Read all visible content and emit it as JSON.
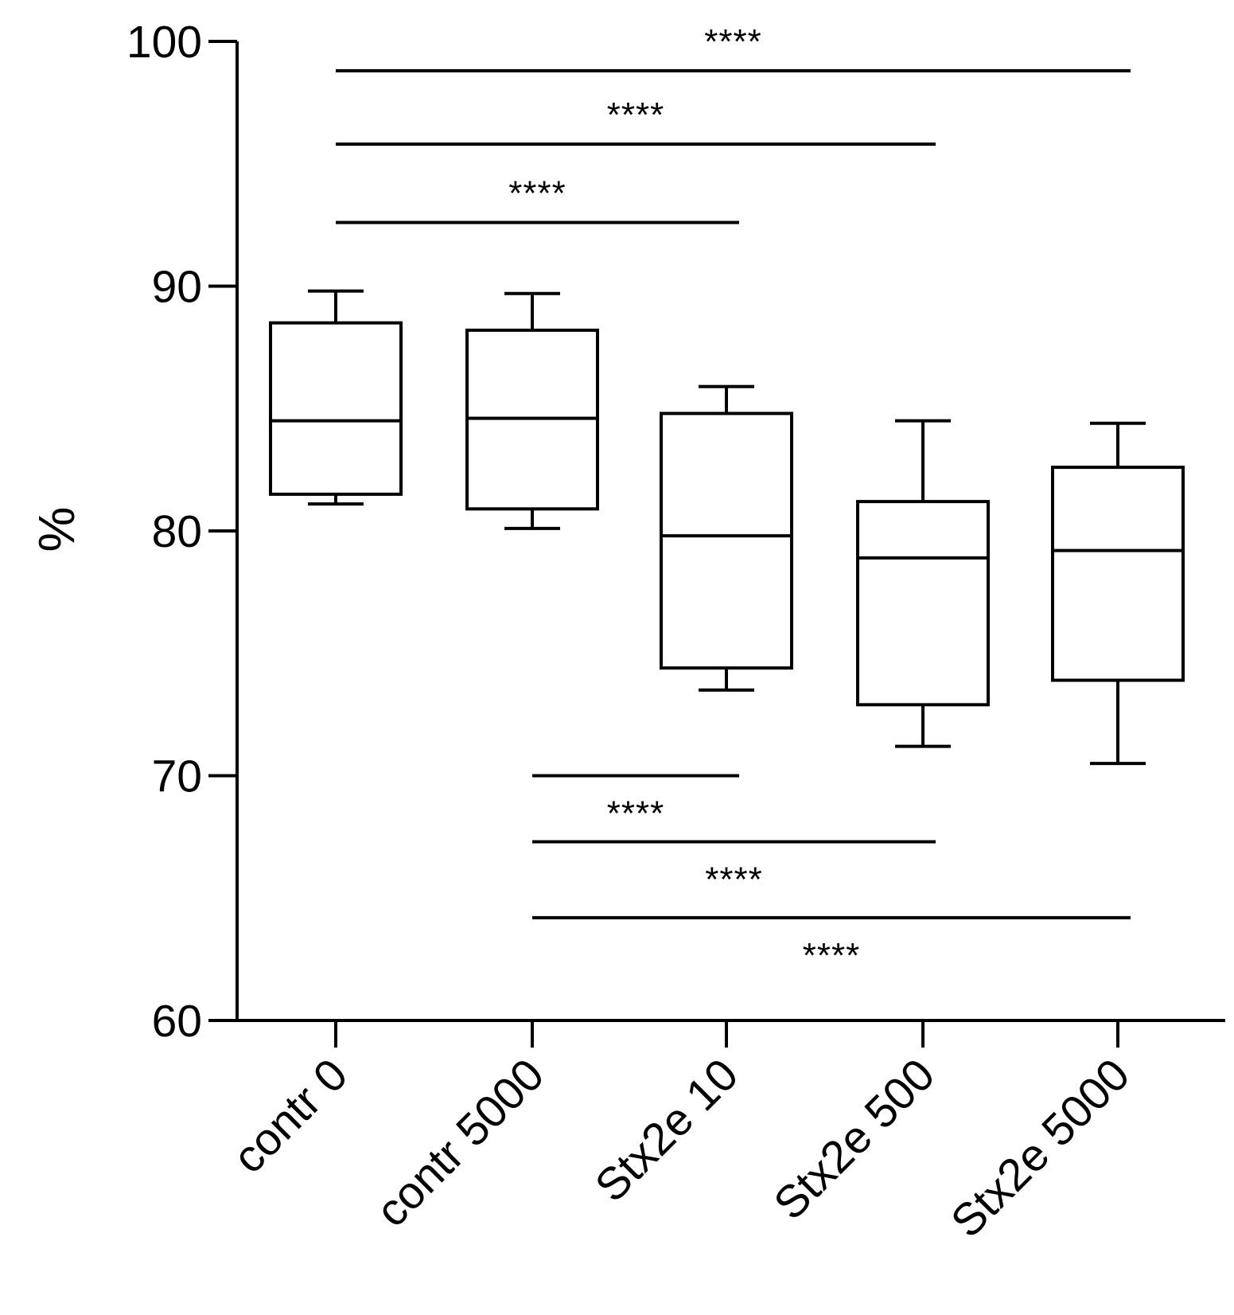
{
  "chart_data": {
    "type": "box",
    "ylabel": "%",
    "xlabel": "",
    "ylim": [
      60,
      100
    ],
    "yticks": [
      60,
      70,
      80,
      90,
      100
    ],
    "categories": [
      "contr 0",
      "contr 5000",
      "Stx2e 10",
      "Stx2e 500",
      "Stx2e 5000"
    ],
    "boxes": [
      {
        "category": "contr 0",
        "whisker_low": 81.1,
        "q1": 81.5,
        "median": 84.5,
        "q3": 88.5,
        "whisker_high": 89.8
      },
      {
        "category": "contr 5000",
        "whisker_low": 80.1,
        "q1": 80.9,
        "median": 84.6,
        "q3": 88.2,
        "whisker_high": 89.7
      },
      {
        "category": "Stx2e 10",
        "whisker_low": 73.5,
        "q1": 74.4,
        "median": 79.8,
        "q3": 84.8,
        "whisker_high": 85.9
      },
      {
        "category": "Stx2e 500",
        "whisker_low": 71.2,
        "q1": 72.9,
        "median": 78.9,
        "q3": 81.2,
        "whisker_high": 84.5
      },
      {
        "category": "Stx2e 5000",
        "whisker_low": 70.5,
        "q1": 73.9,
        "median": 79.2,
        "q3": 82.6,
        "whisker_high": 84.4
      }
    ],
    "significance": [
      {
        "from": "contr 0",
        "to": "Stx2e 5000",
        "y": 98.8,
        "label": "****",
        "label_side": "above"
      },
      {
        "from": "contr 0",
        "to": "Stx2e 500",
        "y": 95.8,
        "label": "****",
        "label_side": "above"
      },
      {
        "from": "contr 0",
        "to": "Stx2e 10",
        "y": 92.6,
        "label": "****",
        "label_side": "above"
      },
      {
        "from": "contr 5000",
        "to": "Stx2e 10",
        "y": 70.0,
        "label": "****",
        "label_side": "below"
      },
      {
        "from": "contr 5000",
        "to": "Stx2e 500",
        "y": 67.3,
        "label": "****",
        "label_side": "below"
      },
      {
        "from": "contr 5000",
        "to": "Stx2e 5000",
        "y": 64.2,
        "label": "****",
        "label_side": "below"
      }
    ],
    "grid": false,
    "legend": "none"
  }
}
